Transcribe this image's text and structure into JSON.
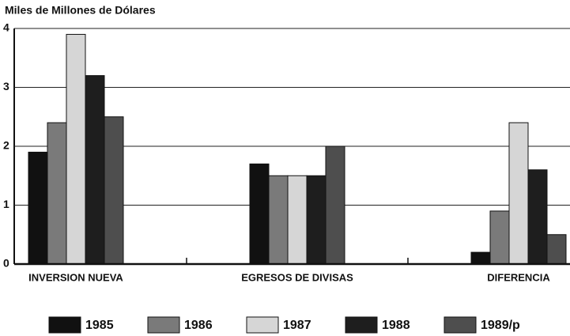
{
  "chart_data": {
    "type": "bar",
    "title": "Miles de Millones de Dólares",
    "categories": [
      "INVERSION NUEVA",
      "EGRESOS DE DIVISAS",
      "DIFERENCIA"
    ],
    "series": [
      {
        "name": "1985",
        "color": "#111111",
        "values": [
          1.9,
          1.7,
          0.2
        ]
      },
      {
        "name": "1986",
        "color": "#7a7a7a",
        "values": [
          2.4,
          1.5,
          0.9
        ]
      },
      {
        "name": "1987",
        "color": "#d6d6d6",
        "values": [
          3.9,
          1.5,
          2.4
        ]
      },
      {
        "name": "1988",
        "color": "#1e1e1e",
        "values": [
          3.2,
          1.5,
          1.6
        ]
      },
      {
        "name": "1989/p",
        "color": "#4e4e4e",
        "values": [
          2.5,
          2.0,
          0.5
        ]
      }
    ],
    "ylim": [
      0,
      4
    ],
    "yticks": [
      0,
      1,
      2,
      3,
      4
    ],
    "grid": true
  }
}
